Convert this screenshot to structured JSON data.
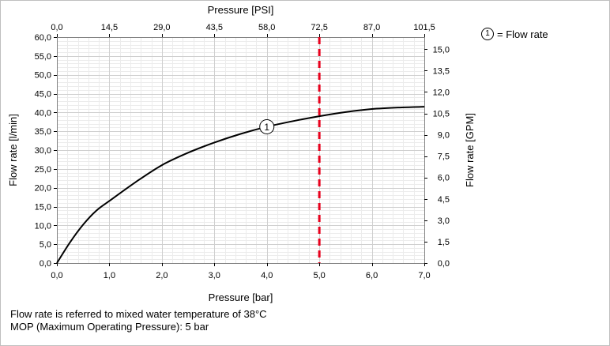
{
  "chart_data": {
    "type": "line",
    "title": "",
    "xlabel": "Pressure [bar]",
    "ylabel": "Flow rate [l/min]",
    "x2label": "Pressure [PSI]",
    "y2label": "Flow rate [GPM]",
    "xlim": [
      0,
      7
    ],
    "ylim": [
      0,
      60
    ],
    "x2lim": [
      0,
      101.5
    ],
    "y2lim": [
      0,
      15.85
    ],
    "x_ticks": [
      "0,0",
      "1,0",
      "2,0",
      "3,0",
      "4,0",
      "5,0",
      "6,0",
      "7,0"
    ],
    "y_ticks": [
      "0,0",
      "5,0",
      "10,0",
      "15,0",
      "20,0",
      "25,0",
      "30,0",
      "35,0",
      "40,0",
      "45,0",
      "50,0",
      "55,0",
      "60,0"
    ],
    "x2_ticks": [
      "0,0",
      "14,5",
      "29,0",
      "43,5",
      "58,0",
      "72,5",
      "87,0",
      "101,5"
    ],
    "y2_ticks": [
      "0,0",
      "1,5",
      "3,0",
      "4,5",
      "6,0",
      "7,5",
      "9,0",
      "10,5",
      "12,0",
      "13,5",
      "15,0"
    ],
    "grid": true,
    "series": [
      {
        "name": "Flow rate",
        "marker": "1",
        "color": "#000000",
        "x": [
          0,
          0.25,
          0.5,
          0.75,
          1.0,
          1.5,
          2.0,
          2.5,
          3.0,
          3.5,
          4.0,
          4.5,
          5.0,
          5.5,
          6.0,
          6.5,
          7.0
        ],
        "y": [
          0,
          5.5,
          10.2,
          13.9,
          16.5,
          21.5,
          26.0,
          29.3,
          32.0,
          34.3,
          36.2,
          37.7,
          39.0,
          40.1,
          40.9,
          41.3,
          41.5
        ]
      }
    ],
    "reference_line": {
      "x": 5.0,
      "color": "#e8001c",
      "style": "dashed"
    },
    "legend": {
      "position": "top-right",
      "marker": "1",
      "text": "= Flow rate"
    },
    "point_label": {
      "text": "1",
      "x": 4.0
    }
  },
  "notes": [
    "Flow rate is referred to mixed water temperature of 38°C",
    "MOP (Maximum Operating Pressure): 5 bar"
  ]
}
